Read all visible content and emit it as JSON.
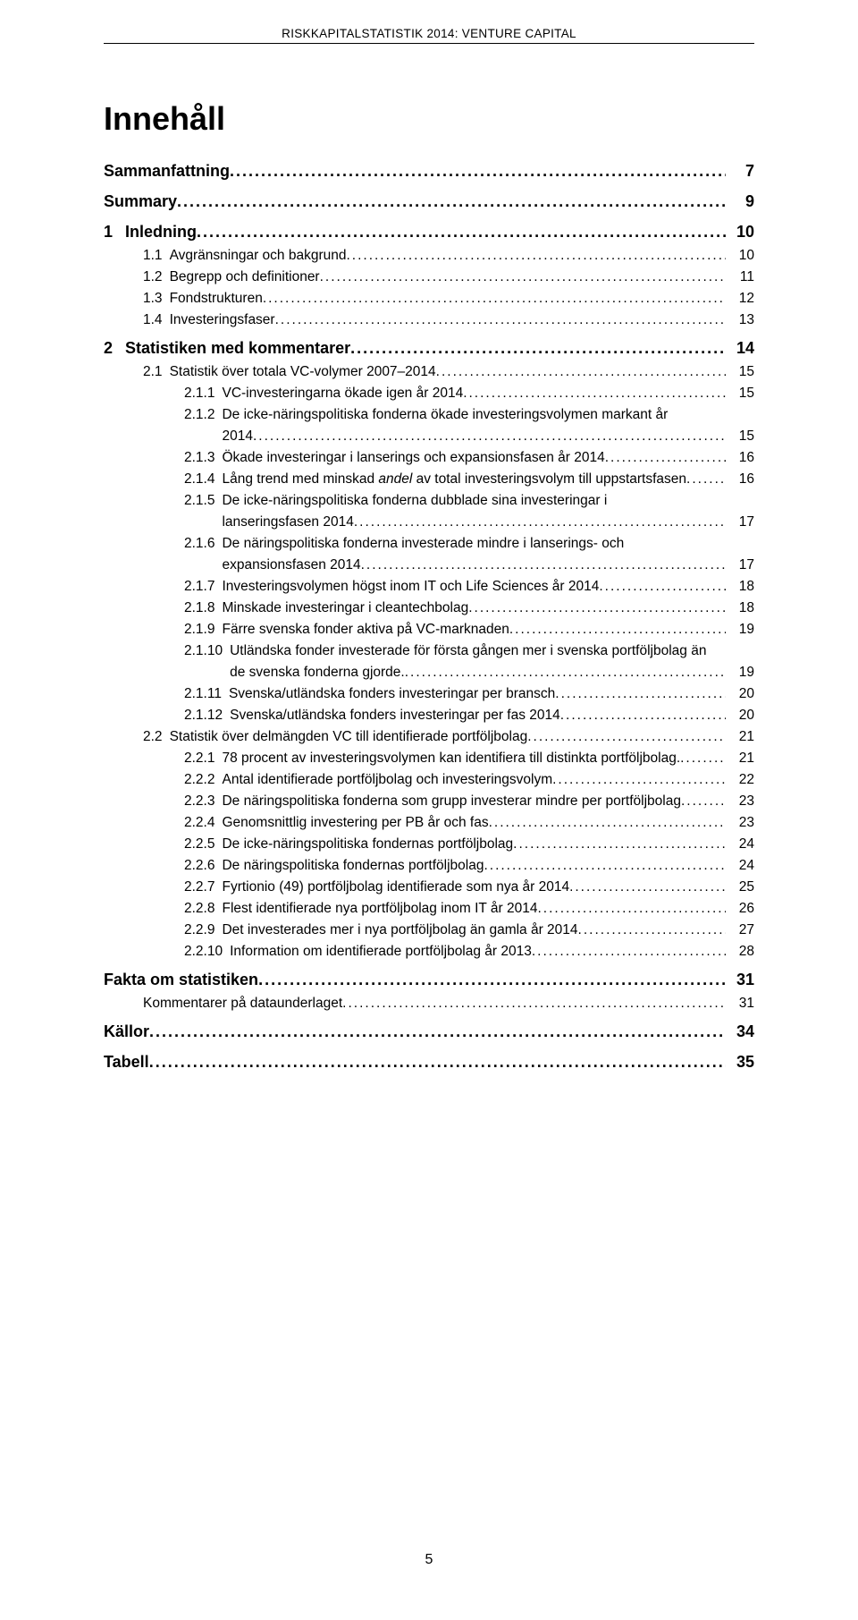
{
  "running_header": "RISKKAPITALSTATISTIK 2014: VENTURE CAPITAL",
  "title": "Innehåll",
  "page_number": "5",
  "toc": [
    {
      "level": 0,
      "num": "",
      "label": "Sammanfattning",
      "page": "7"
    },
    {
      "level": 0,
      "num": "",
      "label": "Summary",
      "page": "9"
    },
    {
      "level": 0,
      "num": "1",
      "label": "Inledning",
      "page": "10"
    },
    {
      "level": 1,
      "num": "1.1",
      "label": "Avgränsningar och bakgrund",
      "page": "10"
    },
    {
      "level": 1,
      "num": "1.2",
      "label": "Begrepp och definitioner",
      "page": "11"
    },
    {
      "level": 1,
      "num": "1.3",
      "label": "Fondstrukturen",
      "page": "12"
    },
    {
      "level": 1,
      "num": "1.4",
      "label": "Investeringsfaser",
      "page": "13"
    },
    {
      "level": 0,
      "num": "2",
      "label": "Statistiken med kommentarer",
      "page": "14"
    },
    {
      "level": 1,
      "num": "2.1",
      "label": "Statistik över totala VC-volymer 2007–2014",
      "page": "15"
    },
    {
      "level": 2,
      "num": "2.1.1",
      "label": "VC-investeringarna ökade igen år 2014",
      "page": "15"
    },
    {
      "level": 2,
      "num": "2.1.2",
      "label_line1": "De icke-näringspolitiska fonderna ökade investeringsvolymen markant år",
      "label_line2": "2014",
      "page": "15",
      "multiline": true
    },
    {
      "level": 2,
      "num": "2.1.3",
      "label": "Ökade investeringar i lanserings och expansionsfasen år 2014",
      "page": "16"
    },
    {
      "level": 2,
      "num": "2.1.4",
      "label": "Lång trend med minskad andel av total investeringsvolym till uppstartsfasen",
      "page": "16",
      "italic_word": "andel"
    },
    {
      "level": 2,
      "num": "2.1.5",
      "label_line1": "De icke-näringspolitiska fonderna dubblade sina investeringar i",
      "label_line2": "lanseringsfasen 2014",
      "page": "17",
      "multiline": true
    },
    {
      "level": 2,
      "num": "2.1.6",
      "label_line1": "De näringspolitiska fonderna investerade mindre i lanserings- och",
      "label_line2": "expansionsfasen 2014",
      "page": "17",
      "multiline": true
    },
    {
      "level": 2,
      "num": "2.1.7",
      "label": "Investeringsvolymen högst inom IT och Life Sciences år 2014",
      "page": "18"
    },
    {
      "level": 2,
      "num": "2.1.8",
      "label": "Minskade investeringar i cleantechbolag",
      "page": "18"
    },
    {
      "level": 2,
      "num": "2.1.9",
      "label": "Färre svenska fonder aktiva på VC-marknaden",
      "page": "19"
    },
    {
      "level": 2,
      "num": "2.1.10",
      "label_line1": "Utländska fonder investerade för första gången mer i svenska portföljbolag än",
      "label_line2": "de svenska fonderna gjorde.",
      "page": "19",
      "multiline": true
    },
    {
      "level": 2,
      "num": "2.1.11",
      "label": "Svenska/utländska fonders investeringar per bransch",
      "page": "20"
    },
    {
      "level": 2,
      "num": "2.1.12",
      "label": "Svenska/utländska fonders investeringar per fas 2014",
      "page": "20"
    },
    {
      "level": 1,
      "num": "2.2",
      "label": "Statistik över delmängden VC till identifierade portföljbolag",
      "page": "21"
    },
    {
      "level": 2,
      "num": "2.2.1",
      "label": "78 procent av investeringsvolymen kan identifiera till distinkta portföljbolag.",
      "page": "21"
    },
    {
      "level": 2,
      "num": "2.2.2",
      "label": "Antal identifierade portföljbolag och investeringsvolym",
      "page": "22"
    },
    {
      "level": 2,
      "num": "2.2.3",
      "label": "De näringspolitiska fonderna som grupp investerar mindre per portföljbolag",
      "page": "23"
    },
    {
      "level": 2,
      "num": "2.2.4",
      "label": "Genomsnittlig investering per PB år och fas",
      "page": "23"
    },
    {
      "level": 2,
      "num": "2.2.5",
      "label": "De icke-näringspolitiska fondernas portföljbolag",
      "page": "24"
    },
    {
      "level": 2,
      "num": "2.2.6",
      "label": "De näringspolitiska fondernas portföljbolag",
      "page": "24"
    },
    {
      "level": 2,
      "num": "2.2.7",
      "label": "Fyrtionio (49) portföljbolag identifierade som nya år 2014",
      "page": "25"
    },
    {
      "level": 2,
      "num": "2.2.8",
      "label": "Flest identifierade nya portföljbolag inom IT år 2014",
      "page": "26"
    },
    {
      "level": 2,
      "num": "2.2.9",
      "label": "Det investerades mer i nya portföljbolag än gamla år 2014",
      "page": "27"
    },
    {
      "level": 2,
      "num": "2.2.10",
      "label": "Information om identifierade portföljbolag år 2013",
      "page": "28"
    },
    {
      "level": 0,
      "num": "",
      "label": "Fakta om statistiken",
      "page": "31"
    },
    {
      "level": 1,
      "num": "",
      "label": "Kommentarer på dataunderlaget",
      "page": "31",
      "nonum": true
    },
    {
      "level": 0,
      "num": "",
      "label": "Källor",
      "page": "34"
    },
    {
      "level": 0,
      "num": "",
      "label": "Tabell",
      "page": "35"
    }
  ]
}
